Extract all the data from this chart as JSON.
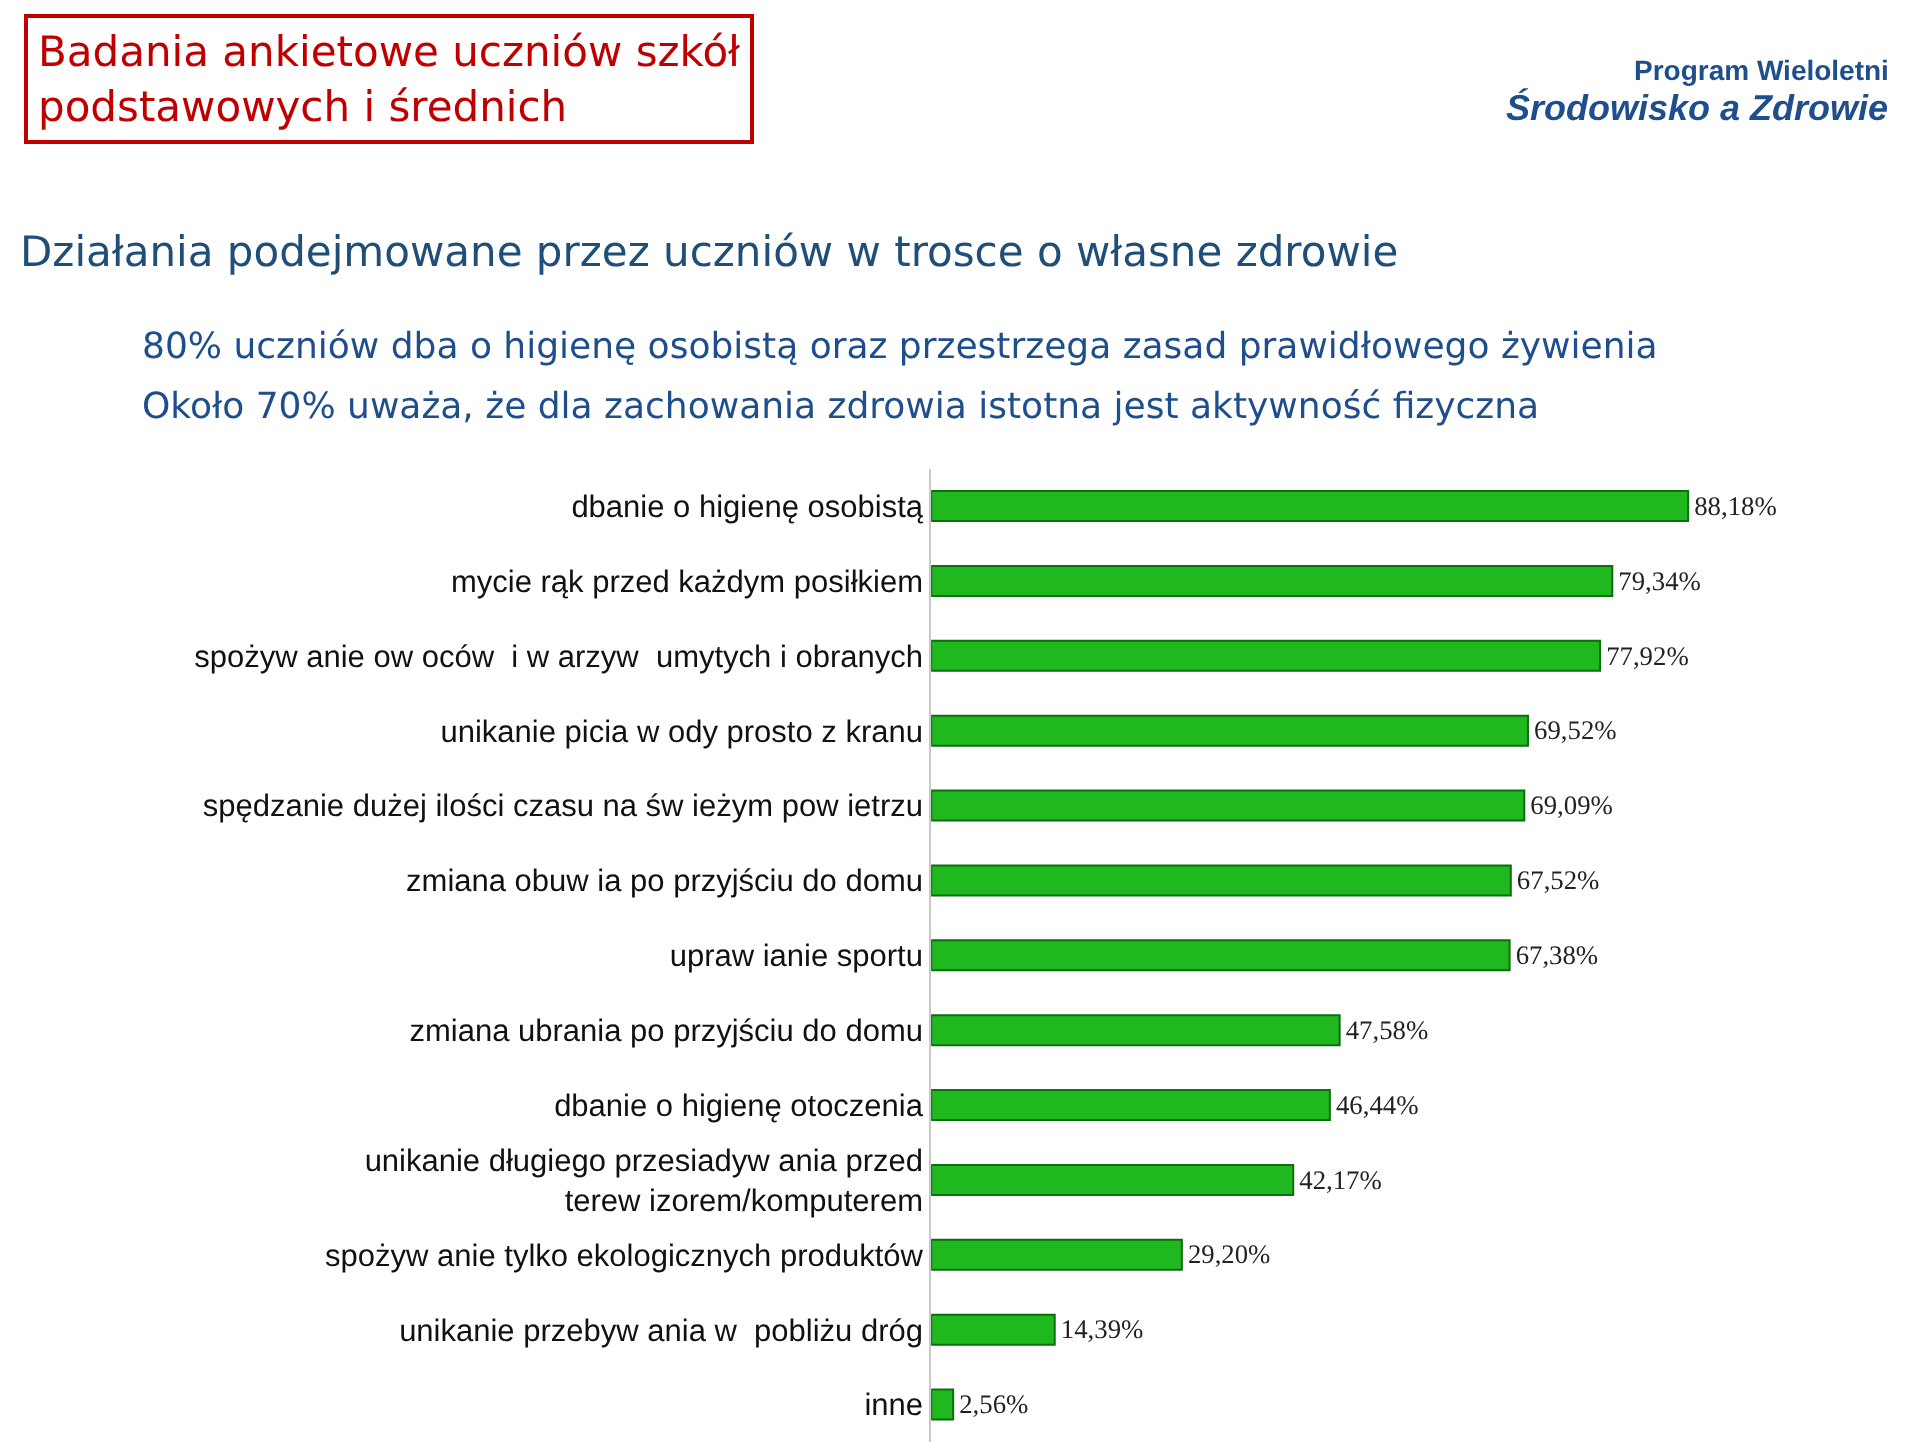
{
  "chart_data": {
    "type": "bar",
    "orientation": "horizontal",
    "title": "Badania ankietowe uczniów szkół\npodstawowych i średnich",
    "subtitle": "Działania podejmowane przez uczniów w trosce o własne zdrowie",
    "annotations": [
      "Program Wieloletni",
      "Środowisko a Zdrowie",
      "80% uczniów dba o higienę osobistą oraz przestrzega zasad prawidłowego żywienia",
      "Około 70% uważa, że dla zachowania zdrowia istotna jest aktywność fizyczna"
    ],
    "categories": [
      "dbanie o higienę osobistą",
      "mycie rąk przed każdym posiłkiem",
      "spożyw anie ow oców  i w arzyw  umytych i obranych",
      "unikanie picia w ody prosto z kranu",
      "spędzanie dużej ilości czasu na św ieżym pow ietrzu",
      "zmiana obuw ia po przyjściu do domu",
      "upraw ianie sportu",
      "zmiana ubrania po przyjściu do domu",
      "dbanie o higienę otoczenia",
      "unikanie długiego przesiadyw ania przed\nterew izorem/komputerem",
      "spożyw anie tylko ekologicznych produktów",
      "unikanie przebyw ania w  pobliżu dróg",
      "inne"
    ],
    "values": [
      88.18,
      79.34,
      77.92,
      69.52,
      69.09,
      67.52,
      67.38,
      47.58,
      46.44,
      42.17,
      29.2,
      14.39,
      2.56
    ],
    "value_labels": [
      "88,18%",
      "79,34%",
      "77,92%",
      "69,52%",
      "69,09%",
      "67,52%",
      "67,38%",
      "47,58%",
      "46,44%",
      "42,17%",
      "29,20%",
      "14,39%",
      "2,56%"
    ],
    "color": "#1fb81f"
  }
}
